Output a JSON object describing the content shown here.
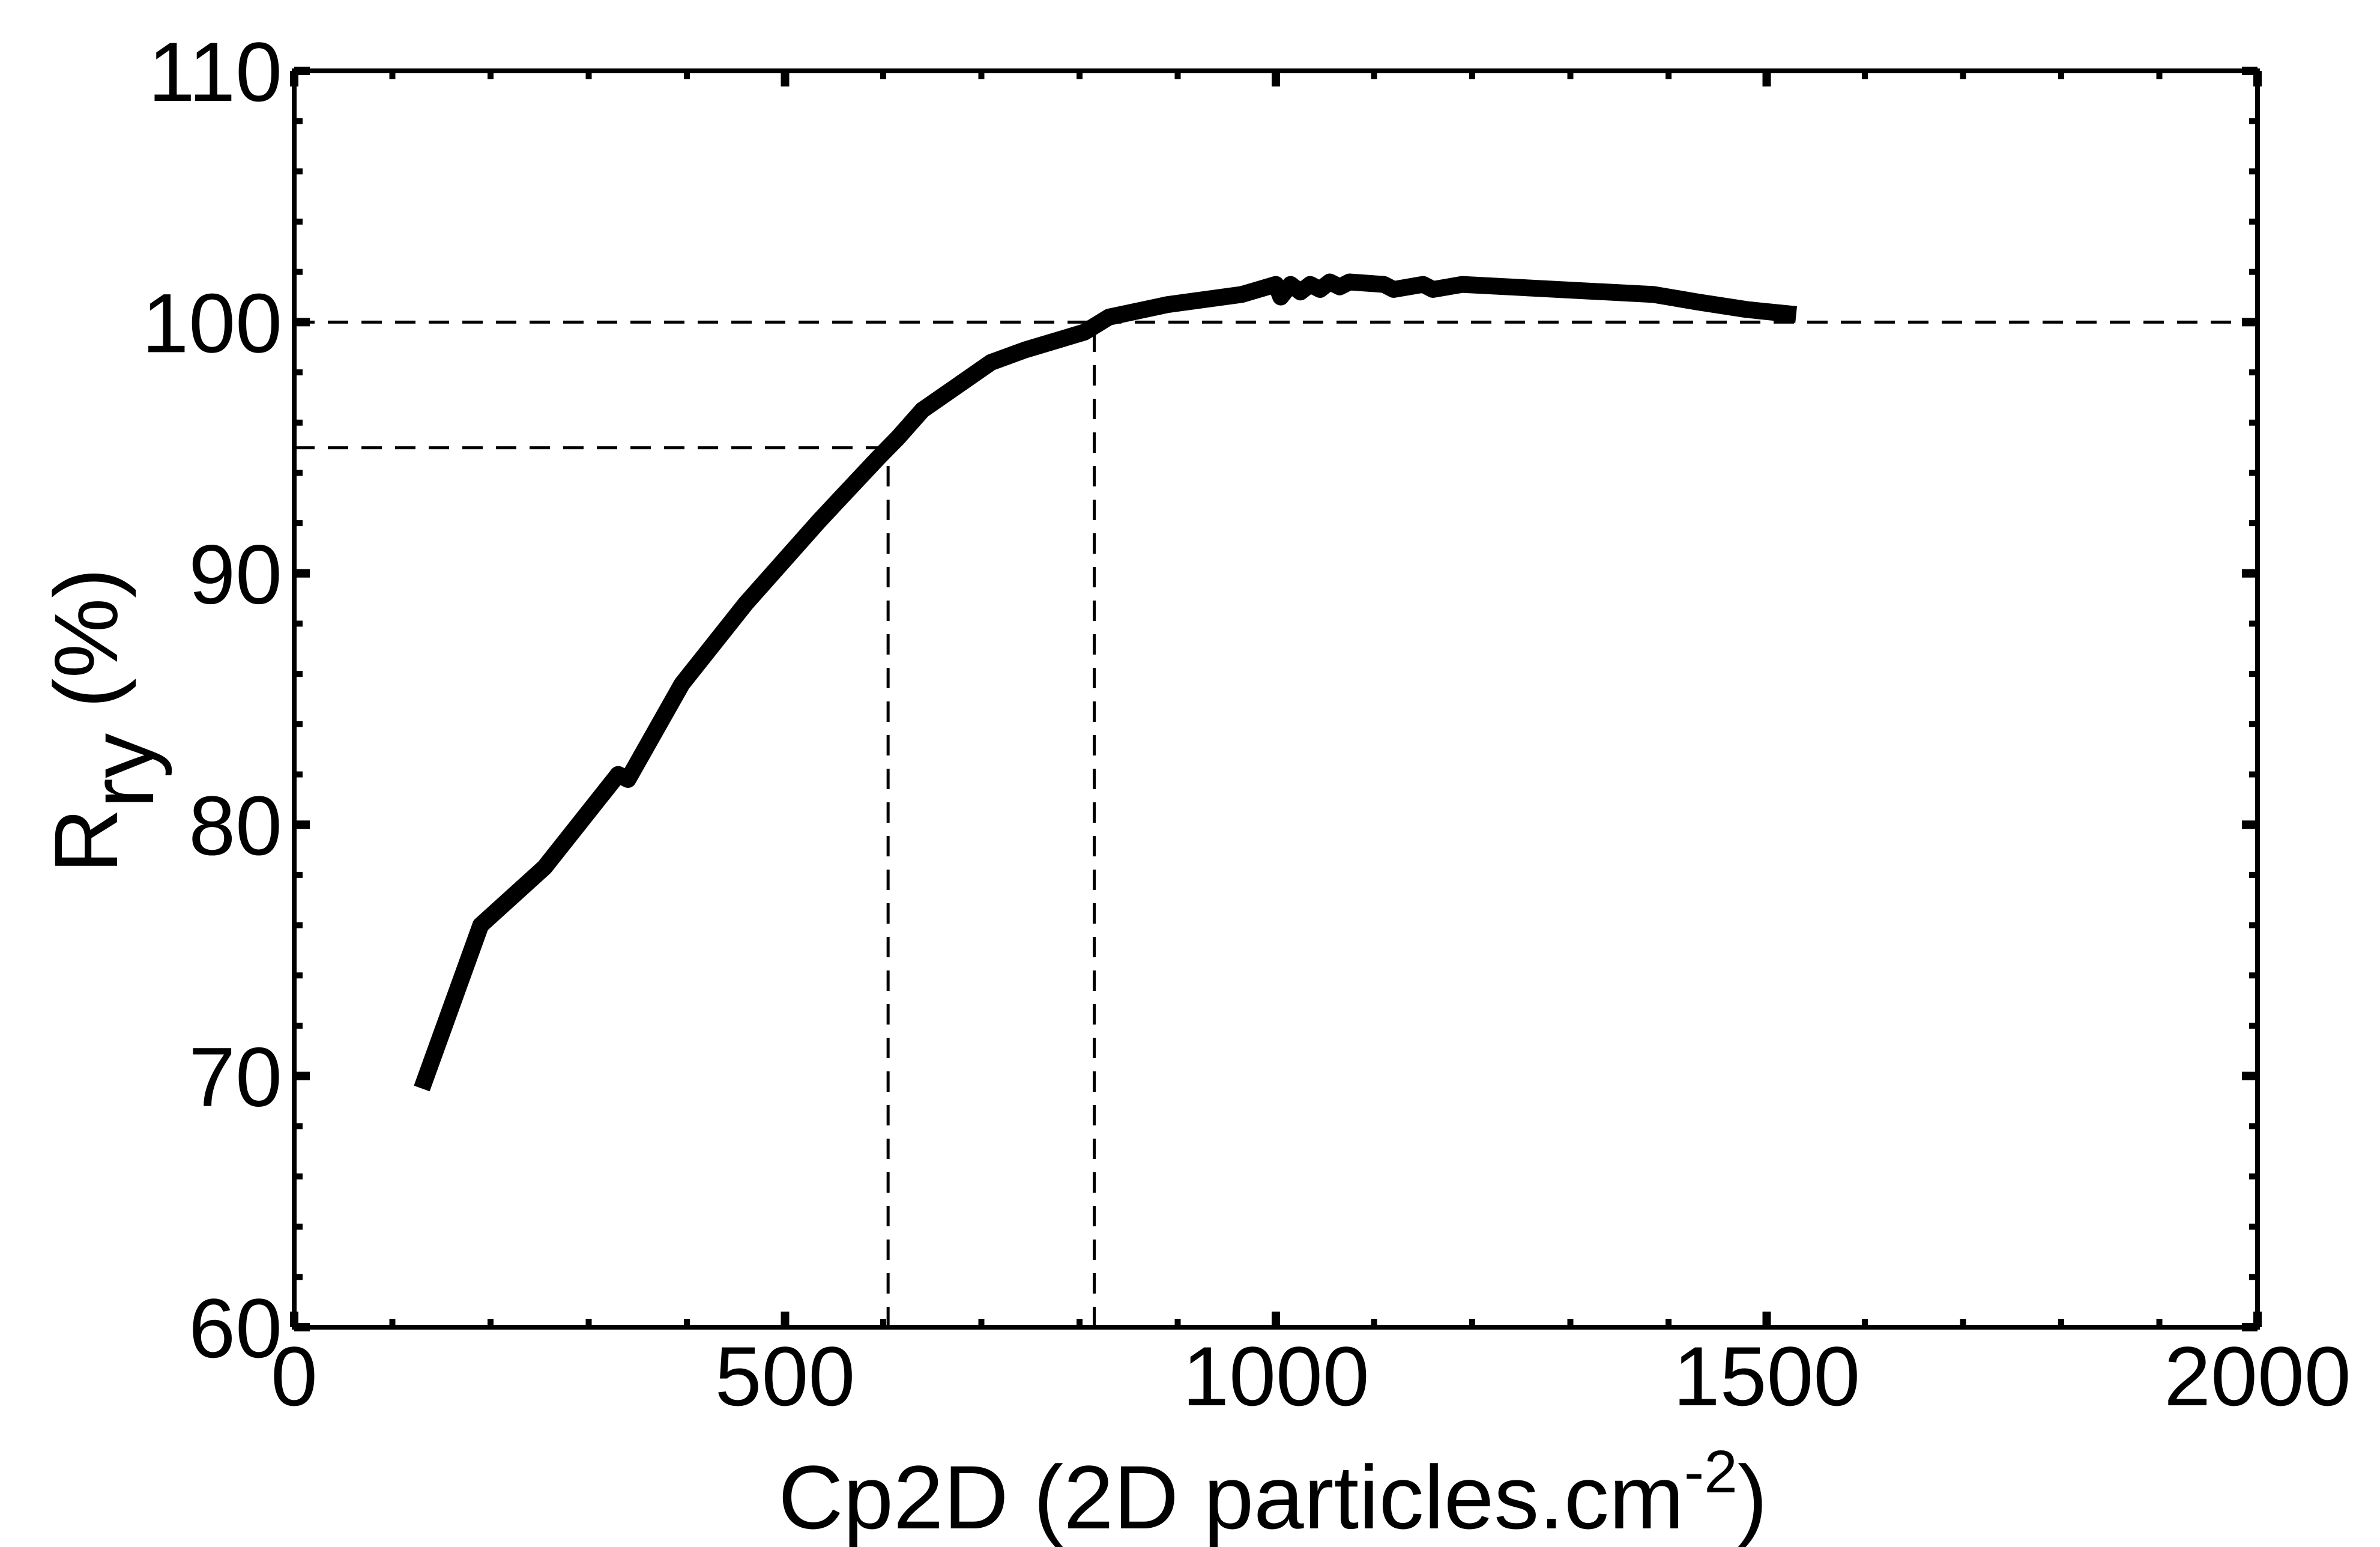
{
  "chart_data": {
    "type": "line",
    "xlabel": "Cp2D (2D particles.cm",
    "xlabel_sup": "-2",
    "xlabel_end": ")",
    "ylabel": "R",
    "ylabel_sub": "ry",
    "ylabel_end": " (%)",
    "xlim": [
      0,
      2000
    ],
    "ylim": [
      60,
      110
    ],
    "xticks": [
      0,
      500,
      1000,
      1500,
      2000
    ],
    "xtick_labels": [
      "0",
      "500",
      "1000",
      "1500",
      "2000"
    ],
    "yticks": [
      60,
      70,
      80,
      90,
      100,
      110
    ],
    "ytick_labels": [
      "60",
      "70",
      "80",
      "90",
      "100",
      "110"
    ],
    "grid": false,
    "series": [
      {
        "color": "#000000",
        "x": [
          130,
          190,
          255,
          330,
          340,
          395,
          460,
          535,
          595,
          615,
          640,
          710,
          745,
          805,
          830,
          890,
          965,
          1000,
          1005,
          1015,
          1025,
          1035,
          1045,
          1055,
          1065,
          1075,
          1110,
          1120,
          1150,
          1160,
          1190,
          1385,
          1430,
          1480,
          1530
        ],
        "y": [
          69.5,
          76.0,
          78.3,
          82.0,
          81.8,
          85.6,
          88.8,
          92.1,
          94.6,
          95.4,
          96.5,
          98.4,
          98.9,
          99.6,
          100.2,
          100.7,
          101.1,
          101.5,
          101.0,
          101.5,
          101.2,
          101.5,
          101.3,
          101.6,
          101.4,
          101.6,
          101.5,
          101.3,
          101.5,
          101.3,
          101.5,
          101.1,
          100.8,
          100.5,
          100.3
        ]
      }
    ],
    "reference_lines": [
      {
        "orientation": "horizontal",
        "y": 100,
        "x_from": 0,
        "x_to": 2000
      },
      {
        "orientation": "horizontal",
        "y": 95,
        "x_from": 0,
        "x_to": 605
      },
      {
        "orientation": "vertical",
        "x": 605,
        "y_from": 60,
        "y_to": 95
      },
      {
        "orientation": "vertical",
        "x": 815,
        "y_from": 60,
        "y_to": 100
      }
    ]
  }
}
